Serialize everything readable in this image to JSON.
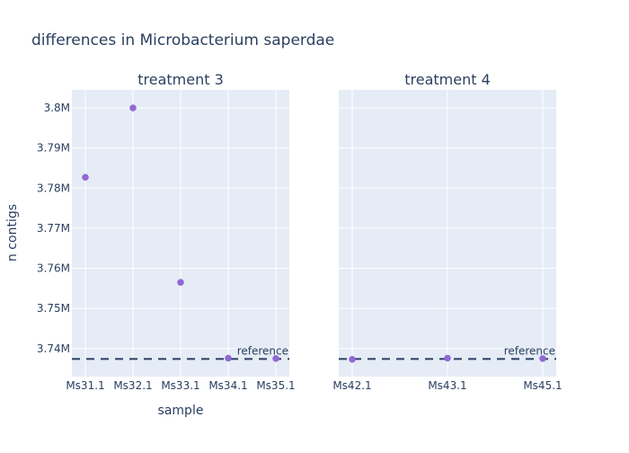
{
  "title": "differences in Microbacterium saperdae",
  "xlabel": "sample",
  "ylabel": "n contigs",
  "colors": {
    "background": "#e5ecf6",
    "grid": "#ffffff",
    "point": "#9467d8",
    "reference_line": "#2a3f5f",
    "text": "#2a3f5f"
  },
  "chart_data": [
    {
      "type": "scatter",
      "title": "treatment 3",
      "categories": [
        "Ms31.1",
        "Ms32.1",
        "Ms33.1",
        "Ms34.1",
        "Ms35.1"
      ],
      "values": [
        3782700,
        3800000,
        3756500,
        3737600,
        3737500
      ],
      "reference": {
        "label": "reference",
        "value": 3737400
      },
      "yticks": [
        3740000,
        3750000,
        3760000,
        3770000,
        3780000,
        3790000,
        3800000
      ],
      "ytick_labels": [
        "3.74M",
        "3.75M",
        "3.76M",
        "3.77M",
        "3.78M",
        "3.79M",
        "3.8M"
      ],
      "ylim": [
        3733000,
        3804500
      ]
    },
    {
      "type": "scatter",
      "title": "treatment 4",
      "categories": [
        "Ms42.1",
        "Ms43.1",
        "Ms45.1"
      ],
      "values": [
        3737300,
        3737600,
        3737500
      ],
      "reference": {
        "label": "reference",
        "value": 3737400
      },
      "ylim": [
        3733000,
        3804500
      ]
    }
  ]
}
